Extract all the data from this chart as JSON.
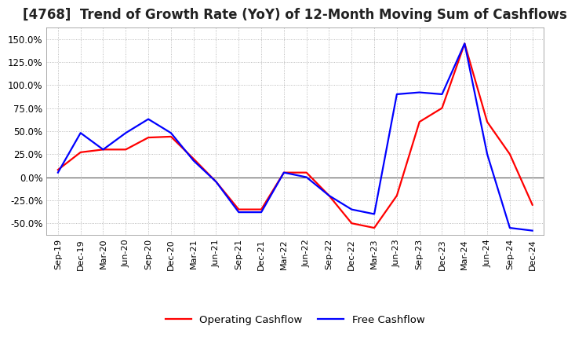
{
  "title": "[4768]  Trend of Growth Rate (YoY) of 12-Month Moving Sum of Cashflows",
  "title_fontsize": 12,
  "ylim": [
    -62.5,
    162.5
  ],
  "yticks": [
    -50.0,
    -25.0,
    0.0,
    25.0,
    50.0,
    75.0,
    100.0,
    125.0,
    150.0
  ],
  "background_color": "#ffffff",
  "grid_color": "#aaaaaa",
  "dates": [
    "Sep-19",
    "Dec-19",
    "Mar-20",
    "Jun-20",
    "Sep-20",
    "Dec-20",
    "Mar-21",
    "Jun-21",
    "Sep-21",
    "Dec-21",
    "Mar-22",
    "Jun-22",
    "Sep-22",
    "Dec-22",
    "Mar-23",
    "Jun-23",
    "Sep-23",
    "Dec-23",
    "Mar-24",
    "Jun-24",
    "Sep-24",
    "Dec-24"
  ],
  "operating_cashflow": [
    8.0,
    27.0,
    30.0,
    30.0,
    43.0,
    44.0,
    20.0,
    -5.0,
    -35.0,
    -35.0,
    5.0,
    5.0,
    -20.0,
    -50.0,
    -55.0,
    -20.0,
    60.0,
    75.0,
    145.0,
    60.0,
    25.0,
    -30.0
  ],
  "free_cashflow": [
    5.0,
    48.0,
    30.0,
    48.0,
    63.0,
    48.0,
    18.0,
    -5.0,
    -38.0,
    -38.0,
    5.0,
    0.0,
    -20.0,
    -35.0,
    -40.0,
    90.0,
    92.0,
    90.0,
    145.0,
    25.0,
    -55.0,
    -58.0
  ],
  "operating_color": "#ff0000",
  "free_color": "#0000ff",
  "line_width": 1.6,
  "legend_labels": [
    "Operating Cashflow",
    "Free Cashflow"
  ]
}
